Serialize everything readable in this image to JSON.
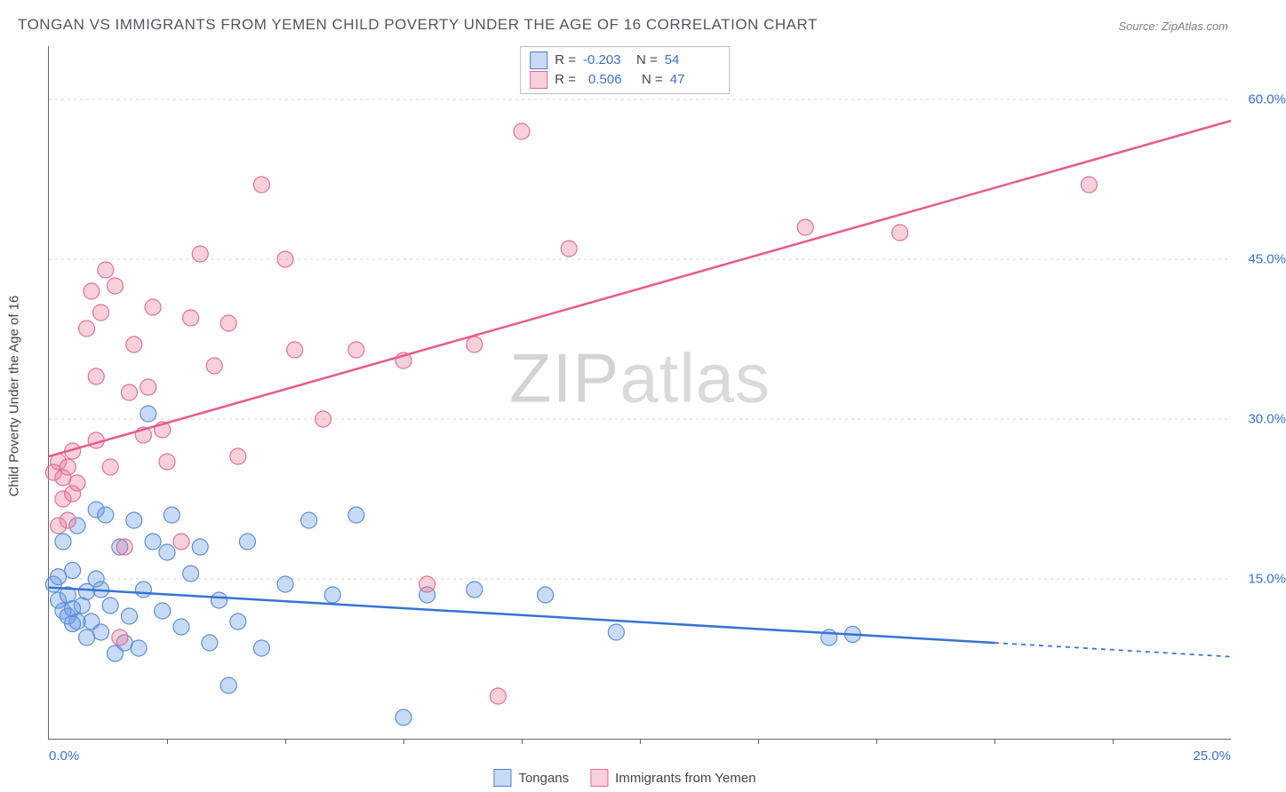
{
  "title": "TONGAN VS IMMIGRANTS FROM YEMEN CHILD POVERTY UNDER THE AGE OF 16 CORRELATION CHART",
  "source": "Source: ZipAtlas.com",
  "ylabel": "Child Poverty Under the Age of 16",
  "watermark_a": "ZIP",
  "watermark_b": "atlas",
  "chart": {
    "type": "scatter",
    "xlim": [
      0,
      25
    ],
    "ylim": [
      0,
      65
    ],
    "xtick_labels": [
      "0.0%",
      "25.0%"
    ],
    "xtick_positions": [
      0,
      25
    ],
    "xtick_minor": [
      2.5,
      5,
      7.5,
      10,
      12.5,
      15,
      17.5,
      20,
      22.5
    ],
    "ytick_labels": [
      "15.0%",
      "30.0%",
      "45.0%",
      "60.0%"
    ],
    "ytick_positions": [
      15,
      30,
      45,
      60
    ],
    "grid_color": "#d4d4d4",
    "axis_color": "#666666",
    "background": "#ffffff",
    "series": [
      {
        "name": "Tongans",
        "legend_label": "Tongans",
        "fill": "rgba(100,150,230,0.35)",
        "stroke": "#5a8fd8",
        "marker_r": 9,
        "R": "-0.203",
        "N": "54",
        "trend": {
          "x1": 0,
          "y1": 14.2,
          "x2": 20,
          "y2": 9.0,
          "x2_dash": 25,
          "y2_dash": 7.7,
          "color": "#3673d6",
          "width": 2.5
        },
        "points": [
          [
            0.1,
            14.5
          ],
          [
            0.2,
            15.2
          ],
          [
            0.2,
            13.0
          ],
          [
            0.3,
            12.0
          ],
          [
            0.3,
            18.5
          ],
          [
            0.4,
            11.5
          ],
          [
            0.4,
            13.5
          ],
          [
            0.5,
            10.8
          ],
          [
            0.5,
            12.2
          ],
          [
            0.5,
            15.8
          ],
          [
            0.6,
            11.0
          ],
          [
            0.6,
            20.0
          ],
          [
            0.7,
            12.5
          ],
          [
            0.8,
            13.8
          ],
          [
            0.8,
            9.5
          ],
          [
            0.9,
            11.0
          ],
          [
            1.0,
            15.0
          ],
          [
            1.0,
            21.5
          ],
          [
            1.1,
            10.0
          ],
          [
            1.1,
            14.0
          ],
          [
            1.2,
            21.0
          ],
          [
            1.3,
            12.5
          ],
          [
            1.4,
            8.0
          ],
          [
            1.5,
            18.0
          ],
          [
            1.6,
            9.0
          ],
          [
            1.7,
            11.5
          ],
          [
            1.8,
            20.5
          ],
          [
            1.9,
            8.5
          ],
          [
            2.0,
            14.0
          ],
          [
            2.1,
            30.5
          ],
          [
            2.2,
            18.5
          ],
          [
            2.4,
            12.0
          ],
          [
            2.5,
            17.5
          ],
          [
            2.6,
            21.0
          ],
          [
            2.8,
            10.5
          ],
          [
            3.0,
            15.5
          ],
          [
            3.2,
            18.0
          ],
          [
            3.4,
            9.0
          ],
          [
            3.6,
            13.0
          ],
          [
            3.8,
            5.0
          ],
          [
            4.0,
            11.0
          ],
          [
            4.2,
            18.5
          ],
          [
            4.5,
            8.5
          ],
          [
            5.0,
            14.5
          ],
          [
            5.5,
            20.5
          ],
          [
            6.0,
            13.5
          ],
          [
            6.5,
            21.0
          ],
          [
            7.5,
            2.0
          ],
          [
            8.0,
            13.5
          ],
          [
            9.0,
            14.0
          ],
          [
            10.5,
            13.5
          ],
          [
            12.0,
            10.0
          ],
          [
            16.5,
            9.5
          ],
          [
            17.0,
            9.8
          ]
        ]
      },
      {
        "name": "Immigrants from Yemen",
        "legend_label": "Immigrants from Yemen",
        "fill": "rgba(235,120,150,0.35)",
        "stroke": "#e07095",
        "marker_r": 9,
        "R": "0.506",
        "N": "47",
        "trend": {
          "x1": 0,
          "y1": 26.5,
          "x2": 25,
          "y2": 58.0,
          "color": "#e85a8a",
          "width": 2.5
        },
        "points": [
          [
            0.1,
            25.0
          ],
          [
            0.2,
            20.0
          ],
          [
            0.2,
            26.0
          ],
          [
            0.3,
            22.5
          ],
          [
            0.3,
            24.5
          ],
          [
            0.4,
            25.5
          ],
          [
            0.4,
            20.5
          ],
          [
            0.5,
            23.0
          ],
          [
            0.5,
            27.0
          ],
          [
            0.6,
            24.0
          ],
          [
            0.8,
            38.5
          ],
          [
            0.9,
            42.0
          ],
          [
            1.0,
            28.0
          ],
          [
            1.0,
            34.0
          ],
          [
            1.1,
            40.0
          ],
          [
            1.2,
            44.0
          ],
          [
            1.3,
            25.5
          ],
          [
            1.4,
            42.5
          ],
          [
            1.5,
            9.5
          ],
          [
            1.6,
            18.0
          ],
          [
            1.7,
            32.5
          ],
          [
            1.8,
            37.0
          ],
          [
            2.0,
            28.5
          ],
          [
            2.1,
            33.0
          ],
          [
            2.2,
            40.5
          ],
          [
            2.4,
            29.0
          ],
          [
            2.5,
            26.0
          ],
          [
            2.8,
            18.5
          ],
          [
            3.0,
            39.5
          ],
          [
            3.2,
            45.5
          ],
          [
            3.5,
            35.0
          ],
          [
            3.8,
            39.0
          ],
          [
            4.0,
            26.5
          ],
          [
            4.5,
            52.0
          ],
          [
            5.0,
            45.0
          ],
          [
            5.2,
            36.5
          ],
          [
            5.8,
            30.0
          ],
          [
            6.5,
            36.5
          ],
          [
            7.5,
            35.5
          ],
          [
            8.0,
            14.5
          ],
          [
            9.0,
            37.0
          ],
          [
            9.5,
            4.0
          ],
          [
            10.0,
            57.0
          ],
          [
            11.0,
            46.0
          ],
          [
            16.0,
            48.0
          ],
          [
            18.0,
            47.5
          ],
          [
            22.0,
            52.0
          ]
        ]
      }
    ]
  }
}
